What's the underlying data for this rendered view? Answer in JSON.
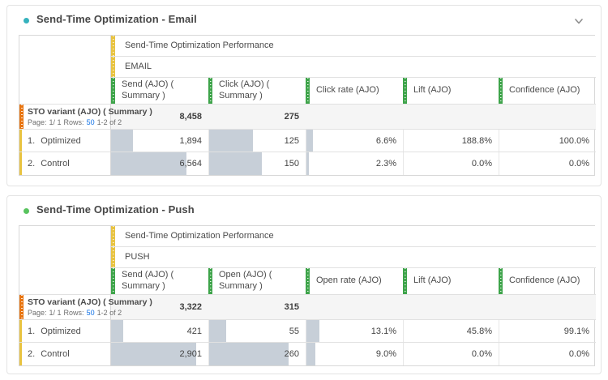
{
  "colors": {
    "email_dot": "#35b2bd",
    "push_dot": "#58c35e",
    "dimension_stripe_yellow": "#e8c342",
    "metric_stripe_green": "#3ea44a",
    "row_dimension_stripe_orange": "#e8740f",
    "cell_bar_fill": "#c7cfd8",
    "link_blue": "#1473e6"
  },
  "icons": {
    "collapse": "chevron-down"
  },
  "panels": [
    {
      "title": "Send-Time Optimization - Email",
      "perf_header": "Send-Time Optimization Performance",
      "channel_header": "EMAIL",
      "columns": [
        {
          "label": "Send (AJO) ( Summary )"
        },
        {
          "label": "Click (AJO) ( Summary )"
        },
        {
          "label": "Click rate (AJO)"
        },
        {
          "label": "Lift (AJO)"
        },
        {
          "label": "Confidence (AJO)"
        }
      ],
      "row_dimension": {
        "label": "STO variant (AJO) ( Summary )",
        "page_label": "Page:",
        "page_value": "1/ 1",
        "rows_label": "Rows:",
        "rows_per_page": "50",
        "range_text": "1-2 of 2"
      },
      "totals": [
        "8,458",
        "275",
        "",
        "",
        ""
      ],
      "rows": [
        {
          "num": "1.",
          "label": "Optimized",
          "values": [
            "1,894",
            "125",
            "6.6%",
            "188.8%",
            "100.0%"
          ],
          "bars": [
            22.4,
            45.5,
            6.6,
            0,
            0
          ]
        },
        {
          "num": "2.",
          "label": "Control",
          "values": [
            "6,564",
            "150",
            "2.3%",
            "0.0%",
            "0.0%"
          ],
          "bars": [
            77.6,
            54.5,
            2.3,
            0,
            0
          ]
        }
      ]
    },
    {
      "title": "Send-Time Optimization - Push",
      "perf_header": "Send-Time Optimization Performance",
      "channel_header": "PUSH",
      "columns": [
        {
          "label": "Send (AJO) ( Summary )"
        },
        {
          "label": "Open (AJO) ( Summary )"
        },
        {
          "label": "Open rate (AJO)"
        },
        {
          "label": "Lift (AJO)"
        },
        {
          "label": "Confidence (AJO)"
        }
      ],
      "row_dimension": {
        "label": "STO variant (AJO) ( Summary )",
        "page_label": "Page:",
        "page_value": "1/ 1",
        "rows_label": "Rows:",
        "rows_per_page": "50",
        "range_text": "1-2 of 2"
      },
      "totals": [
        "3,322",
        "315",
        "",
        "",
        ""
      ],
      "rows": [
        {
          "num": "1.",
          "label": "Optimized",
          "values": [
            "421",
            "55",
            "13.1%",
            "45.8%",
            "99.1%"
          ],
          "bars": [
            12.7,
            17.5,
            13.1,
            0,
            0
          ]
        },
        {
          "num": "2.",
          "label": "Control",
          "values": [
            "2,901",
            "260",
            "9.0%",
            "0.0%",
            "0.0%"
          ],
          "bars": [
            87.3,
            82.5,
            9.0,
            0,
            0
          ]
        }
      ]
    }
  ]
}
